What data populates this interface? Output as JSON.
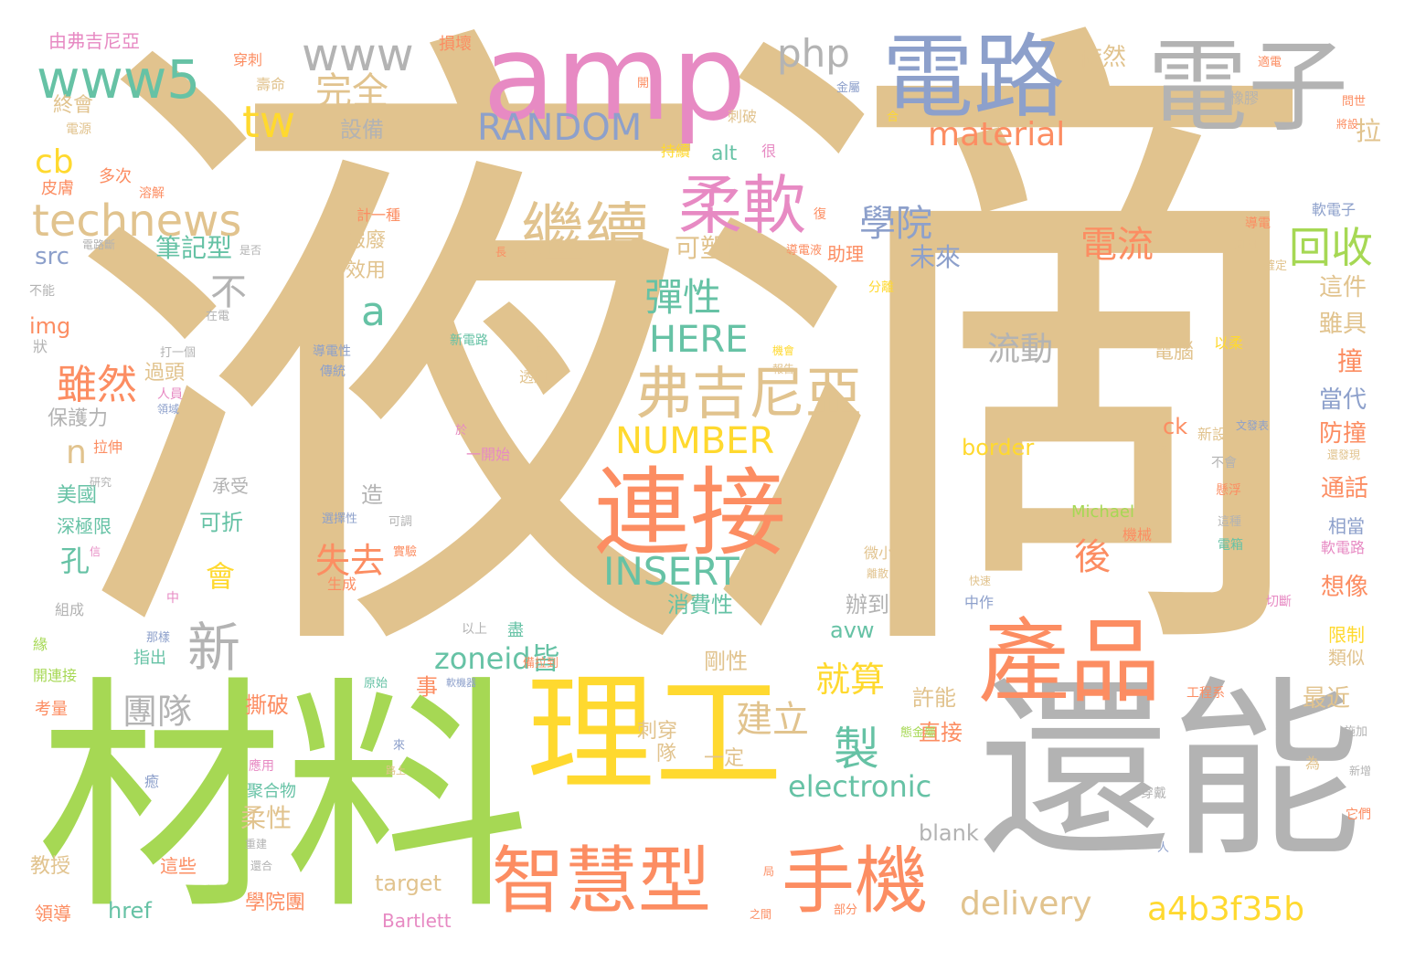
{
  "colors": {
    "tan": "#e1c38e",
    "green": "#a6d854",
    "yellow": "#ffd92f",
    "orange": "#fc8d62",
    "pink": "#e78ac3",
    "blue": "#8da0cb",
    "gray": "#b3b3b3",
    "teal": "#66c2a5"
  },
  "words": [
    "液滴",
    "材料",
    "還能",
    "理工",
    "amp",
    "電路",
    "電子",
    "產品",
    "連接",
    "智慧型",
    "手機",
    "www5",
    "www",
    "php",
    "tw",
    "完全",
    "RANDOM",
    "material",
    "technews",
    "cb",
    "繼續",
    "柔軟",
    "學院",
    "回收",
    "電流",
    "彈性",
    "弗吉尼亞",
    "雖然",
    "NUMBER",
    "HERE",
    "INSERT",
    "a4b3f35b",
    "delivery",
    "electronic",
    "製",
    "建立",
    "就算",
    "團隊",
    "新",
    "失去",
    "後",
    "zoneid皆",
    "a",
    "不",
    "n",
    "孔",
    "會",
    "流動",
    "可塑性",
    "筆記型",
    "未來",
    "報廢",
    "效用",
    "src",
    "img",
    "設備",
    "依然",
    "拉",
    "這件",
    "雖具",
    "撞",
    "當代",
    "防撞",
    "通話",
    "相當",
    "想像",
    "限制",
    "類似",
    "最近",
    "許能",
    "直接",
    "刺穿",
    "隊",
    "一定",
    "柔性",
    "blank",
    "target",
    "href",
    "Bartlett",
    "學院團",
    "教授",
    "這些",
    "領導",
    "撕破",
    "事",
    "剛性",
    "消費性",
    "辦到",
    "avw",
    "可折",
    "造",
    "美國",
    "深極限",
    "保護力",
    "過頭",
    "border",
    "ck",
    "新設",
    "Michael",
    "機械",
    "電腦",
    "以柔",
    "軟電子",
    "導電",
    "周圍",
    "確定",
    "分離",
    "alt",
    "助理",
    "持續",
    "很",
    "刺破",
    "橡膠",
    "由弗吉尼亞",
    "穿刺",
    "壽命",
    "終會",
    "電源",
    "皮膚",
    "多次",
    "溶解",
    "損壞",
    "開",
    "金屬",
    "合",
    "適電",
    "問世",
    "將設",
    "計一種",
    "復",
    "導電液",
    "長",
    "電路斷",
    "是否",
    "不能",
    "在電",
    "打一個",
    "狀",
    "新電路",
    "導電性",
    "傳統",
    "成",
    "透過",
    "人員",
    "領域",
    "於",
    "一開始",
    "拉伸",
    "研究",
    "承受",
    "選擇性",
    "可調",
    "信",
    "實驗",
    "生成",
    "中",
    "組成",
    "那樣",
    "指出",
    "緣",
    "開連接",
    "以上",
    "盡",
    "備拉到",
    "軟機器",
    "原始",
    "考量",
    "應用",
    "聚合物",
    "來",
    "癒",
    "路上",
    "態金屬",
    "重建",
    "還合",
    "局",
    "之間",
    "部分",
    "人",
    "為",
    "穿戴",
    "它們",
    "新增",
    "施加",
    "微小",
    "離散",
    "快速",
    "中作",
    "切斷",
    "軟電路",
    "電箱",
    "這種",
    "懸浮",
    "文發表",
    "度",
    "還發現",
    "不會",
    "工程系",
    "機會",
    "報告"
  ]
}
